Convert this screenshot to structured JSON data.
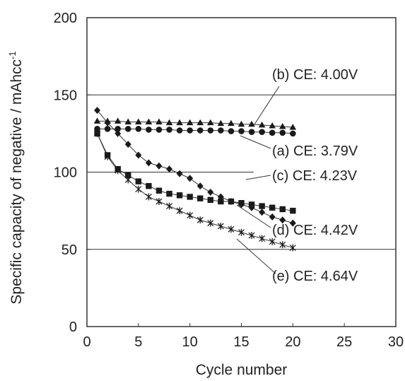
{
  "chart_data": {
    "type": "line",
    "title": "",
    "xlabel": "Cycle number",
    "ylabel": "Specific capacity of negative / mAhcc",
    "ylabel_superscript": "-1",
    "xlim": [
      0,
      30
    ],
    "ylim": [
      0,
      200
    ],
    "x_ticks": [
      "0",
      "5",
      "10",
      "15",
      "20",
      "25",
      "30"
    ],
    "y_ticks": [
      "0",
      "50",
      "100",
      "150",
      "200"
    ],
    "grid": "partial horizontal reference lines",
    "legend": "none (inline annotations with leader lines)",
    "series": [
      {
        "label": "(a) CE: 3.79V",
        "marker": "circle",
        "x": [
          1,
          2,
          3,
          4,
          5,
          6,
          7,
          8,
          9,
          10,
          11,
          12,
          13,
          14,
          15,
          16,
          17,
          18,
          19,
          20
        ],
        "values": [
          128,
          128,
          128,
          128,
          128,
          127.5,
          127.5,
          127.5,
          127,
          127,
          127,
          127,
          127,
          126.5,
          126.5,
          126,
          126,
          125.5,
          125.5,
          125
        ]
      },
      {
        "label": "(b) CE: 4.00V",
        "marker": "triangle",
        "x": [
          1,
          2,
          3,
          4,
          5,
          6,
          7,
          8,
          9,
          10,
          11,
          12,
          13,
          14,
          15,
          16,
          17,
          18,
          19,
          20
        ],
        "values": [
          133,
          133,
          133,
          132.5,
          132.5,
          132.5,
          132.5,
          132,
          132,
          132,
          132,
          132,
          131.5,
          131.5,
          131,
          131,
          130.5,
          130,
          129.5,
          129
        ]
      },
      {
        "label": "(c) CE: 4.23V",
        "marker": "diamond",
        "x": [
          1,
          2,
          3,
          4,
          5,
          6,
          7,
          8,
          9,
          10,
          11,
          12,
          13,
          14,
          15,
          16,
          17,
          18,
          19,
          20
        ],
        "values": [
          140,
          132,
          125,
          118,
          111,
          106,
          104,
          102,
          99,
          96,
          91,
          87,
          84,
          81,
          79,
          77,
          74,
          71,
          69,
          67
        ]
      },
      {
        "label": "(d) CE: 4.42V",
        "marker": "square",
        "x": [
          1,
          2,
          3,
          4,
          5,
          6,
          7,
          8,
          9,
          10,
          11,
          12,
          13,
          14,
          15,
          16,
          17,
          18,
          19,
          20
        ],
        "values": [
          125,
          111,
          102,
          98,
          94,
          91,
          88,
          86,
          85,
          84,
          83,
          82,
          81,
          81,
          80,
          79,
          78,
          77,
          76,
          75
        ]
      },
      {
        "label": "(e) CE: 4.64V",
        "marker": "star",
        "x": [
          1,
          2,
          3,
          4,
          5,
          6,
          7,
          8,
          9,
          10,
          11,
          12,
          13,
          14,
          15,
          16,
          17,
          18,
          19,
          20
        ],
        "values": [
          125,
          110,
          101,
          95,
          89,
          84,
          81,
          78,
          75,
          72,
          69,
          67,
          65,
          63,
          61,
          59,
          57,
          55,
          53,
          51
        ]
      }
    ]
  }
}
